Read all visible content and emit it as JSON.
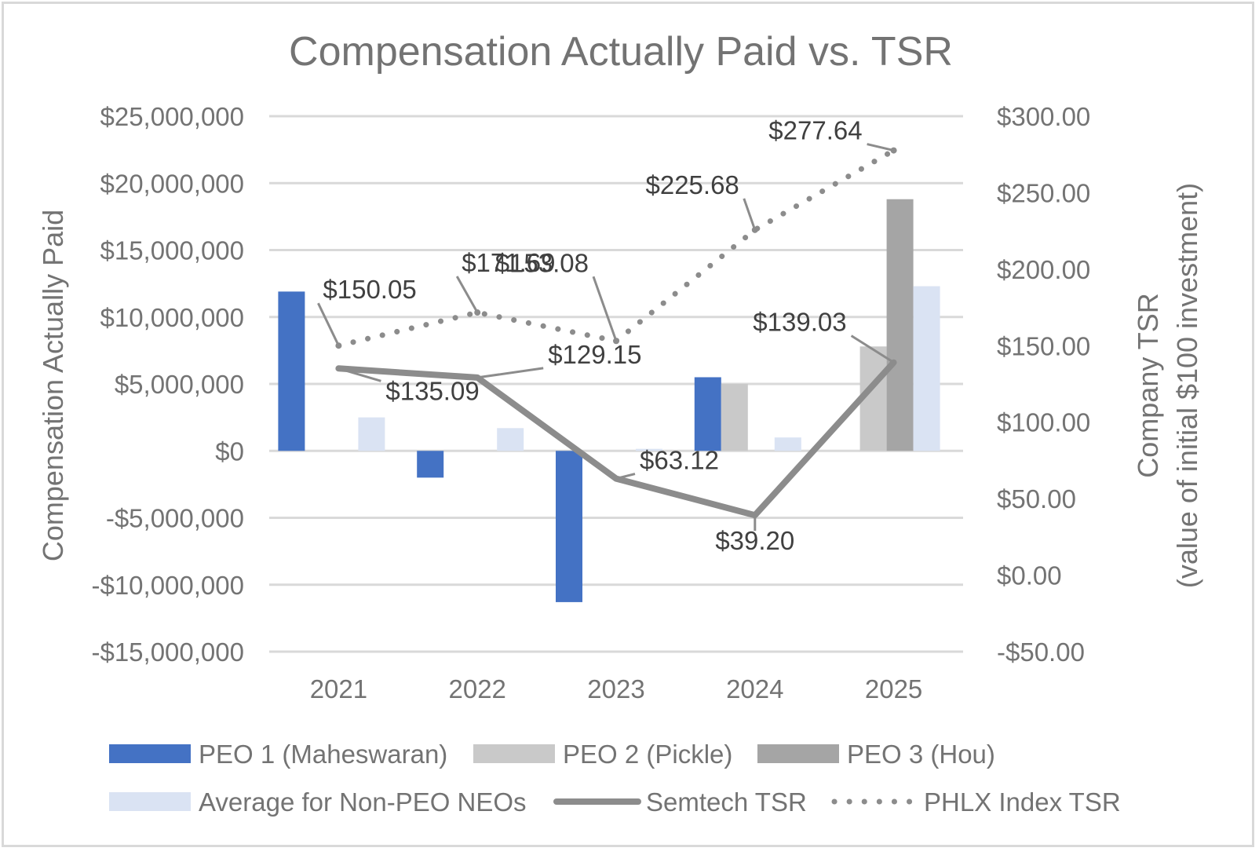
{
  "chart_data": {
    "type": "bar",
    "title": "Compensation Actually Paid vs. TSR",
    "ylabel": "Compensation Actually Paid",
    "y2label_line1": "Company TSR",
    "y2label_line2": "(value of initial $100 investment)",
    "categories": [
      "2021",
      "2022",
      "2023",
      "2024",
      "2025"
    ],
    "ylim": [
      -15000000,
      25000000
    ],
    "y_ticks": [
      25000000,
      20000000,
      15000000,
      10000000,
      5000000,
      0,
      -5000000,
      -10000000,
      -15000000
    ],
    "y_tick_labels": [
      "$25,000,000",
      "$20,000,000",
      "$15,000,000",
      "$10,000,000",
      "$5,000,000",
      "$0",
      "-$5,000,000",
      "-$10,000,000",
      "-$15,000,000"
    ],
    "y2lim": [
      -50,
      300
    ],
    "y2_ticks": [
      300,
      250,
      200,
      150,
      100,
      50,
      0,
      -50
    ],
    "y2_tick_labels": [
      "$300.00",
      "$250.00",
      "$200.00",
      "$150.00",
      "$100.00",
      "$50.00",
      "$0.00",
      "-$50.00"
    ],
    "grid": true,
    "legend_position": "bottom",
    "bar_series": [
      {
        "name": "PEO 1 (Maheswaran)",
        "color": "#4472c4",
        "values": [
          11900000,
          -2000000,
          -11300000,
          5500000,
          null
        ]
      },
      {
        "name": "PEO 2 (Pickle)",
        "color": "#c9c9c9",
        "values": [
          null,
          null,
          null,
          5000000,
          7800000
        ]
      },
      {
        "name": "PEO 3 (Hou)",
        "color": "#a5a5a5",
        "values": [
          null,
          null,
          null,
          null,
          18800000
        ]
      },
      {
        "name": "Average for Non-PEO NEOs",
        "color": "#dae3f3",
        "values": [
          2500000,
          1700000,
          150000,
          1000000,
          12300000
        ]
      }
    ],
    "line_series": [
      {
        "name": "Semtech TSR",
        "color": "#8c8c8c",
        "style": "solid",
        "values": [
          135.09,
          129.15,
          63.12,
          39.2,
          139.03
        ],
        "labels": [
          "$135.09",
          "$129.15",
          "$63.12",
          "$39.20",
          "$139.03"
        ]
      },
      {
        "name": "PHLX Index TSR",
        "color": "#8c8c8c",
        "style": "dotted",
        "values": [
          150.05,
          171.69,
          153.08,
          225.68,
          277.64
        ],
        "labels": [
          "$150.05",
          "$171.69",
          "$153.08",
          "$225.68",
          "$277.64"
        ]
      }
    ]
  }
}
